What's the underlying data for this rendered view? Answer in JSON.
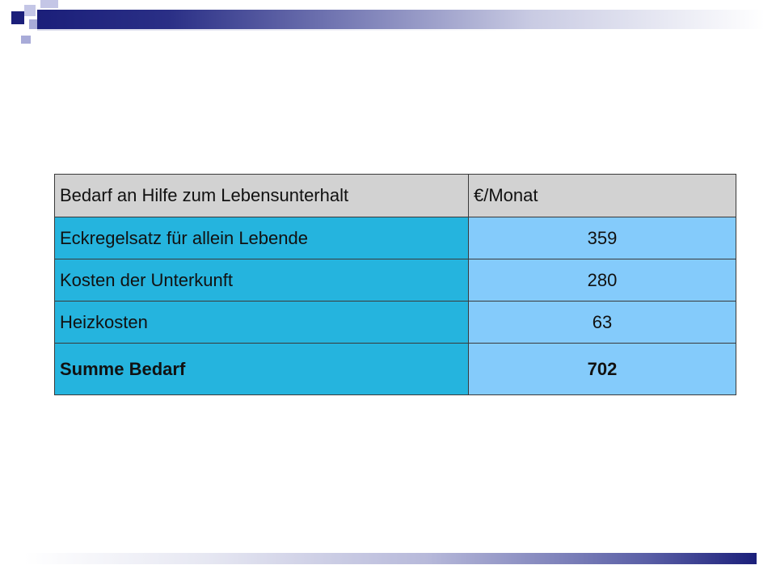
{
  "table": {
    "header": {
      "label": "Bedarf an Hilfe zum Lebensunterhalt",
      "unit": "€/Monat"
    },
    "rows": [
      {
        "label": "Eckregelsatz für allein Lebende",
        "value": "359"
      },
      {
        "label": "Kosten der Unterkunft",
        "value": "280"
      },
      {
        "label": "Heizkosten",
        "value": "63"
      }
    ],
    "total": {
      "label": "Summe Bedarf",
      "value": "702"
    }
  },
  "colors": {
    "header_bg": "#d2d2d2",
    "label_bg": "#25b4de",
    "value_bg": "#84cbfb",
    "accent_navy": "#1b1f7a"
  }
}
